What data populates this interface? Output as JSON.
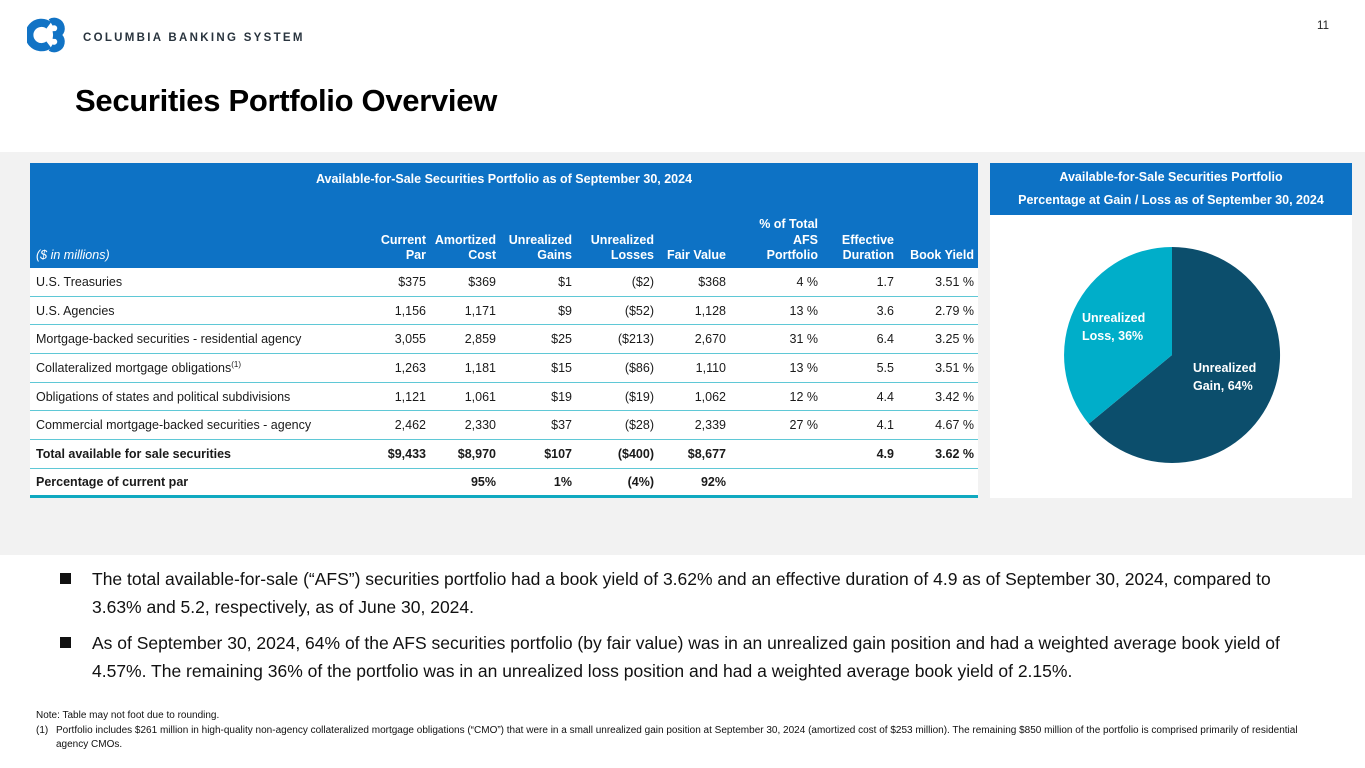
{
  "page_number": "11",
  "logo": {
    "brand": "COLUMBIA BANKING SYSTEM"
  },
  "title": "Securities Portfolio Overview",
  "table": {
    "title": "Available-for-Sale Securities Portfolio as of September 30, 2024",
    "units_label": "($ in millions)",
    "columns": [
      "Current\nPar",
      "Amortized\nCost",
      "Unrealized\nGains",
      "Unrealized\nLosses",
      "Fair Value",
      "% of Total\nAFS\nPortfolio",
      "Effective\nDuration",
      "Book Yield"
    ],
    "rows": [
      {
        "label": "U.S. Treasuries",
        "sup": "",
        "bold": false,
        "values": [
          "$375",
          "$369",
          "$1",
          "($2)",
          "$368",
          "4 %",
          "1.7",
          "3.51 %"
        ]
      },
      {
        "label": "U.S. Agencies",
        "sup": "",
        "bold": false,
        "values": [
          "1,156",
          "1,171",
          "$9",
          "($52)",
          "1,128",
          "13 %",
          "3.6",
          "2.79 %"
        ]
      },
      {
        "label": "Mortgage-backed securities - residential agency",
        "sup": "",
        "bold": false,
        "values": [
          "3,055",
          "2,859",
          "$25",
          "($213)",
          "2,670",
          "31 %",
          "6.4",
          "3.25 %"
        ]
      },
      {
        "label": "Collateralized mortgage obligations",
        "sup": "(1)",
        "bold": false,
        "values": [
          "1,263",
          "1,181",
          "$15",
          "($86)",
          "1,110",
          "13 %",
          "5.5",
          "3.51 %"
        ]
      },
      {
        "label": "Obligations of states and political subdivisions",
        "sup": "",
        "bold": false,
        "values": [
          "1,121",
          "1,061",
          "$19",
          "($19)",
          "1,062",
          "12 %",
          "4.4",
          "3.42 %"
        ]
      },
      {
        "label": "Commercial mortgage-backed securities - agency",
        "sup": "",
        "bold": false,
        "values": [
          "2,462",
          "2,330",
          "$37",
          "($28)",
          "2,339",
          "27 %",
          "4.1",
          "4.67 %"
        ]
      },
      {
        "label": "Total available for sale securities",
        "sup": "",
        "bold": true,
        "values": [
          "$9,433",
          "$8,970",
          "$107",
          "($400)",
          "$8,677",
          "",
          "4.9",
          "3.62 %"
        ]
      },
      {
        "label": "Percentage of current par",
        "sup": "",
        "bold": true,
        "values": [
          "",
          "95%",
          "1%",
          "(4%)",
          "92%",
          "",
          "",
          ""
        ]
      }
    ]
  },
  "pie_panel": {
    "title_line1": "Available-for-Sale Securities Portfolio",
    "title_line2": "Percentage at Gain / Loss as of September 30, 2024"
  },
  "chart_data": {
    "type": "pie",
    "title": "Available-for-Sale Securities Portfolio Percentage at Gain / Loss as of September 30, 2024",
    "labels": [
      "Unrealized Gain",
      "Unrealized Loss"
    ],
    "values": [
      64,
      36
    ],
    "unit": "%",
    "colors": [
      "#0c4e6c",
      "#00aec9"
    ],
    "slice_label_display": [
      "Unrealized\nGain, 64%",
      "Unrealized\nLoss, 36%"
    ],
    "layout": "gain slice starts at 12 o'clock and sweeps clockwise; labels drawn inside slices in white"
  },
  "bullets": [
    "The total available-for-sale (“AFS”) securities portfolio had a book yield of 3.62% and an effective duration of 4.9 as of September 30, 2024, compared to 3.63% and 5.2, respectively, as of June 30, 2024.",
    "As of September 30, 2024, 64% of the AFS securities portfolio (by fair value) was in an unrealized gain position and had a weighted average book yield of 4.57%. The remaining 36% of the portfolio was in an unrealized loss position and had a weighted average book yield of 2.15%."
  ],
  "footnotes": {
    "note": "Note: Table may not foot due to rounding.",
    "fn1_marker": "(1)",
    "fn1_text": "Portfolio includes $261 million in high-quality non-agency collateralized mortgage obligations (“CMO”) that were in a small unrealized gain position at September 30, 2024 (amortized cost of $253 million). The remaining $850 million of the portfolio is comprised primarily of residential agency CMOs."
  },
  "colors": {
    "header_blue": "#0d72c5",
    "pie_gain_navy": "#0c4e6c",
    "pie_loss_teal": "#00aec9",
    "row_separator_teal": "#5fc8d6",
    "table_bottom_border_teal": "#10a9c0",
    "band_gray": "#f2f2f2",
    "logo_blue": "#1173c5",
    "text_black": "#111111"
  }
}
